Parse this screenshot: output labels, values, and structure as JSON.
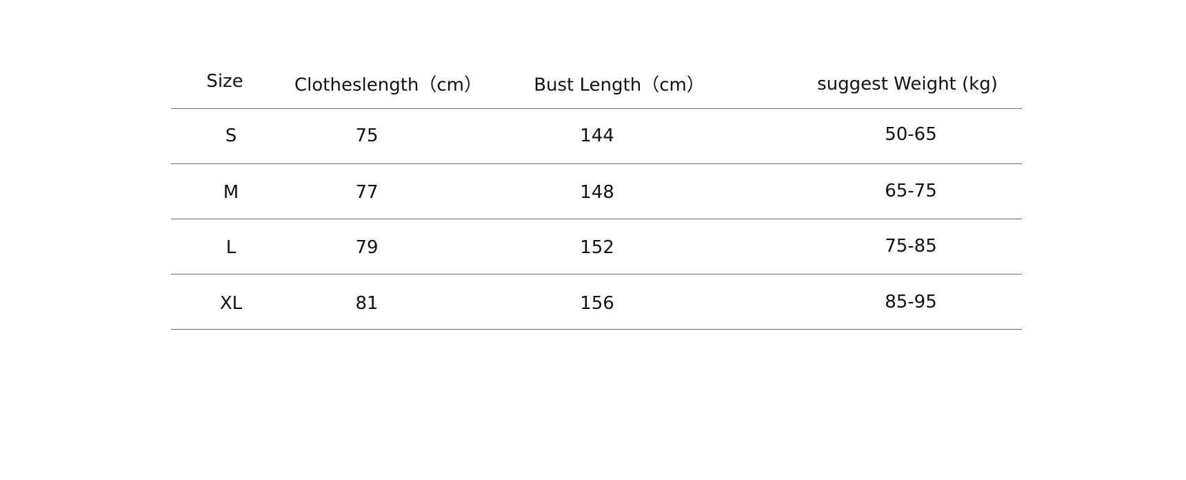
{
  "table": {
    "headers": [
      "Size",
      "Clotheslength（cm）",
      "Bust Length（cm）",
      "suggest Weight  (kg)"
    ],
    "rows": [
      [
        "S",
        "75",
        "144",
        "50-65"
      ],
      [
        "M",
        "77",
        "148",
        "65-75"
      ],
      [
        "L",
        "79",
        "152",
        "75-85"
      ],
      [
        "XL",
        "81",
        "156",
        "85-95"
      ]
    ]
  }
}
